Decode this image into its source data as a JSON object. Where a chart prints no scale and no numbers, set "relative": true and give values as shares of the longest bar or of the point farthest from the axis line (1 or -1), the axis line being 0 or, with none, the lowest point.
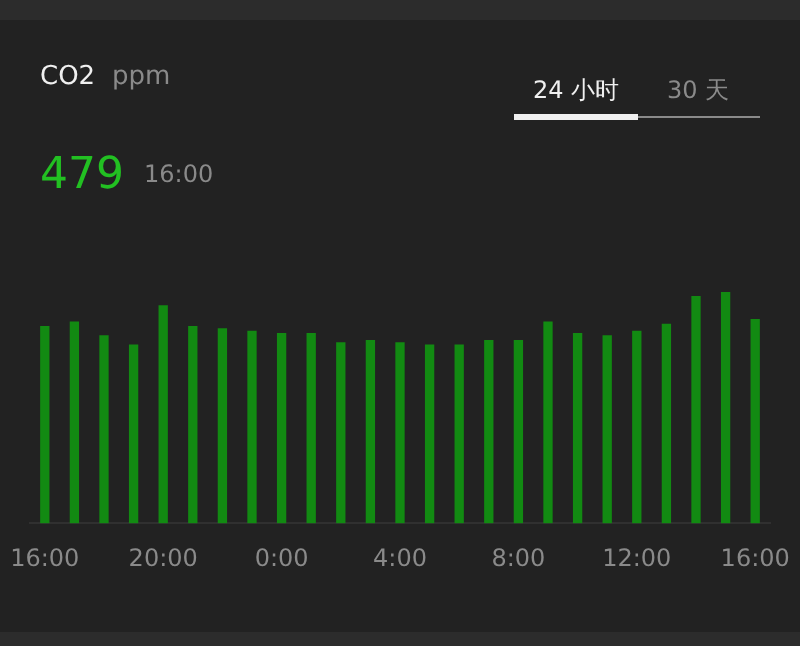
{
  "chart_data": {
    "type": "bar",
    "title": "CO2",
    "subtitle": "ppm",
    "relative": true,
    "color": "#128a12",
    "legend": false,
    "categories": [
      "16:00",
      null,
      null,
      null,
      "20:00",
      null,
      null,
      null,
      "0:00",
      null,
      null,
      null,
      "4:00",
      null,
      null,
      null,
      "8:00",
      null,
      null,
      null,
      "12:00",
      null,
      null,
      null,
      "16:00"
    ],
    "values": [
      0.85,
      0.87,
      0.81,
      0.77,
      0.94,
      0.85,
      0.84,
      0.83,
      0.82,
      0.82,
      0.78,
      0.79,
      0.78,
      0.77,
      0.77,
      0.79,
      0.79,
      0.87,
      0.82,
      0.81,
      0.83,
      0.86,
      0.98,
      1,
      0.88
    ],
    "annotations": [
      "479",
      "16:00",
      "24 小时",
      "30 天"
    ]
  }
}
